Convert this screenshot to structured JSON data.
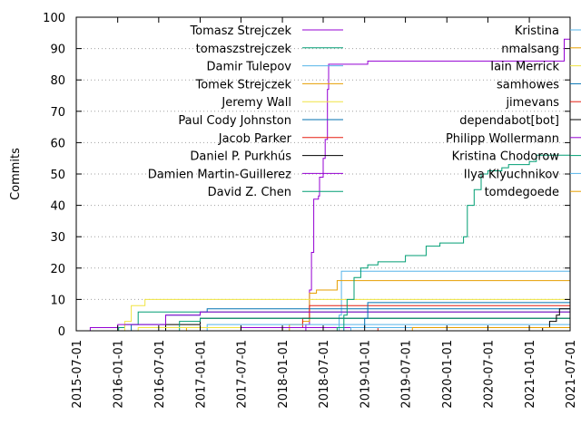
{
  "chart_data": {
    "type": "line",
    "title": "",
    "xlabel": "",
    "ylabel": "Commits",
    "ylim": [
      0,
      100
    ],
    "xlim": [
      "2015-07-01",
      "2021-07-01"
    ],
    "grid": "horizontal dotted",
    "legend_placement": "top, two columns",
    "y_ticks": [
      "0",
      "10",
      "20",
      "30",
      "40",
      "50",
      "60",
      "70",
      "80",
      "90",
      "100"
    ],
    "x_ticks": [
      "2015-07-01",
      "2016-01-01",
      "2016-07-01",
      "2017-01-01",
      "2017-07-01",
      "2018-01-01",
      "2018-07-01",
      "2019-01-01",
      "2019-07-01",
      "2020-01-01",
      "2020-07-01",
      "2021-01-01",
      "2021-07-01"
    ],
    "series": [
      {
        "name": "Tomasz Strejczek",
        "color": "#9400d3",
        "points": [
          [
            "2018-03-01",
            0
          ],
          [
            "2018-04-15",
            2
          ],
          [
            "2018-05-01",
            13
          ],
          [
            "2018-05-10",
            25
          ],
          [
            "2018-05-20",
            42
          ],
          [
            "2018-06-10",
            43
          ],
          [
            "2018-06-15",
            49
          ],
          [
            "2018-07-01",
            55
          ],
          [
            "2018-07-10",
            61
          ],
          [
            "2018-07-20",
            77
          ],
          [
            "2018-07-25",
            85
          ],
          [
            "2018-09-01",
            85
          ],
          [
            "2019-01-01",
            85
          ],
          [
            "2019-01-15",
            86
          ],
          [
            "2021-06-01",
            86
          ],
          [
            "2021-06-05",
            93
          ],
          [
            "2021-06-30",
            93
          ]
        ]
      },
      {
        "name": "tomaszstrejczek",
        "color": "#009e73",
        "points": [
          [
            "2015-12-20",
            0
          ],
          [
            "2016-01-05",
            1
          ],
          [
            "2016-02-01",
            2
          ],
          [
            "2016-04-01",
            6
          ],
          [
            "2021-06-30",
            6
          ]
        ]
      },
      {
        "name": "Damir Tulepov",
        "color": "#56b4e9",
        "points": [
          [
            "2018-09-01",
            0
          ],
          [
            "2018-09-10",
            5
          ],
          [
            "2018-09-20",
            19
          ],
          [
            "2021-06-30",
            19
          ]
        ]
      },
      {
        "name": "Tomek Strejczek",
        "color": "#e69f00",
        "points": [
          [
            "2017-11-01",
            0
          ],
          [
            "2018-02-01",
            2
          ],
          [
            "2018-04-01",
            3
          ],
          [
            "2018-05-01",
            12
          ],
          [
            "2018-06-01",
            13
          ],
          [
            "2018-09-01",
            16
          ],
          [
            "2021-06-30",
            16
          ]
        ]
      },
      {
        "name": "Jeremy Wall",
        "color": "#f0e442",
        "points": [
          [
            "2016-01-01",
            0
          ],
          [
            "2016-02-01",
            3
          ],
          [
            "2016-03-01",
            8
          ],
          [
            "2016-05-01",
            10
          ],
          [
            "2021-06-30",
            10
          ]
        ]
      },
      {
        "name": "Paul Cody Johnston",
        "color": "#0072b2",
        "points": [
          [
            "2016-01-01",
            0
          ],
          [
            "2016-03-01",
            2
          ],
          [
            "2016-08-01",
            5
          ],
          [
            "2017-01-01",
            6
          ],
          [
            "2017-02-01",
            7
          ],
          [
            "2021-06-30",
            7
          ]
        ]
      },
      {
        "name": "Jacob Parker",
        "color": "#e51e10",
        "points": [
          [
            "2017-11-01",
            0
          ],
          [
            "2018-01-01",
            1
          ],
          [
            "2018-04-01",
            4
          ],
          [
            "2018-05-01",
            8
          ],
          [
            "2021-06-30",
            8
          ]
        ]
      },
      {
        "name": "Daniel P. Purkhús",
        "color": "#000000",
        "points": [
          [
            "2016-06-01",
            0
          ],
          [
            "2016-08-01",
            2
          ],
          [
            "2017-01-01",
            4
          ],
          [
            "2021-06-30",
            4
          ]
        ]
      },
      {
        "name": "Damien Martin-Guillerez",
        "color": "#9400d3",
        "points": [
          [
            "2015-08-15",
            0
          ],
          [
            "2015-09-01",
            1
          ],
          [
            "2016-01-01",
            2
          ],
          [
            "2016-08-01",
            5
          ],
          [
            "2017-01-01",
            6
          ],
          [
            "2021-06-30",
            6
          ]
        ]
      },
      {
        "name": "David Z. Chen",
        "color": "#009e73",
        "points": [
          [
            "2016-06-01",
            0
          ],
          [
            "2016-10-01",
            3
          ],
          [
            "2017-01-01",
            4
          ],
          [
            "2021-06-30",
            4
          ]
        ]
      },
      {
        "name": "Kristina",
        "color": "#56b4e9",
        "points": [
          [
            "2017-01-01",
            0
          ],
          [
            "2017-02-01",
            2
          ],
          [
            "2021-06-30",
            2
          ]
        ]
      },
      {
        "name": "nmalsang",
        "color": "#e69f00",
        "points": [
          [
            "2016-10-01",
            0
          ],
          [
            "2016-11-01",
            1
          ],
          [
            "2021-06-30",
            1
          ]
        ]
      },
      {
        "name": "Iain Merrick",
        "color": "#f0e442",
        "points": [
          [
            "2016-03-01",
            0
          ],
          [
            "2016-04-01",
            1
          ],
          [
            "2021-06-30",
            1
          ]
        ]
      },
      {
        "name": "samhowes",
        "color": "#0072b2",
        "points": [
          [
            "2018-09-01",
            0
          ],
          [
            "2018-10-01",
            1
          ],
          [
            "2019-01-01",
            4
          ],
          [
            "2019-01-15",
            9
          ],
          [
            "2021-06-30",
            9
          ]
        ]
      },
      {
        "name": "jimevans",
        "color": "#e51e10",
        "points": [
          [
            "2019-01-01",
            0
          ],
          [
            "2019-03-01",
            1
          ],
          [
            "2021-06-30",
            1
          ]
        ]
      },
      {
        "name": "dependabot[bot]",
        "color": "#000000",
        "points": [
          [
            "2021-01-01",
            0
          ],
          [
            "2021-03-01",
            1
          ],
          [
            "2021-04-01",
            3
          ],
          [
            "2021-05-01",
            5
          ],
          [
            "2021-05-15",
            7
          ],
          [
            "2021-06-30",
            7
          ]
        ]
      },
      {
        "name": "Philipp Wollermann",
        "color": "#9400d3",
        "points": [
          [
            "2017-06-01",
            0
          ],
          [
            "2017-07-01",
            1
          ],
          [
            "2021-06-30",
            1
          ]
        ]
      },
      {
        "name": "Kristina Chodorow",
        "color": "#009e73",
        "points": [
          [
            "2018-08-01",
            0
          ],
          [
            "2018-09-01",
            1
          ],
          [
            "2018-10-01",
            5
          ],
          [
            "2018-10-15",
            10
          ],
          [
            "2018-11-15",
            17
          ],
          [
            "2018-12-15",
            20
          ],
          [
            "2019-01-15",
            21
          ],
          [
            "2019-03-01",
            22
          ],
          [
            "2019-07-01",
            24
          ],
          [
            "2019-10-01",
            27
          ],
          [
            "2019-12-01",
            28
          ],
          [
            "2020-03-01",
            28
          ],
          [
            "2020-03-15",
            30
          ],
          [
            "2020-04-01",
            40
          ],
          [
            "2020-05-01",
            45
          ],
          [
            "2020-06-01",
            50
          ],
          [
            "2020-07-01",
            51
          ],
          [
            "2020-09-01",
            52
          ],
          [
            "2020-10-01",
            53
          ],
          [
            "2021-01-01",
            54
          ],
          [
            "2021-02-01",
            56
          ],
          [
            "2021-06-30",
            56
          ]
        ]
      },
      {
        "name": "Ilya Klyuchnikov",
        "color": "#56b4e9",
        "points": [
          [
            "2018-10-01",
            0
          ],
          [
            "2018-11-01",
            1
          ],
          [
            "2021-06-30",
            1
          ]
        ]
      },
      {
        "name": "tomdegoede",
        "color": "#e69f00",
        "points": [
          [
            "2019-07-01",
            0
          ],
          [
            "2019-08-01",
            1
          ],
          [
            "2021-06-30",
            1
          ]
        ]
      }
    ]
  }
}
